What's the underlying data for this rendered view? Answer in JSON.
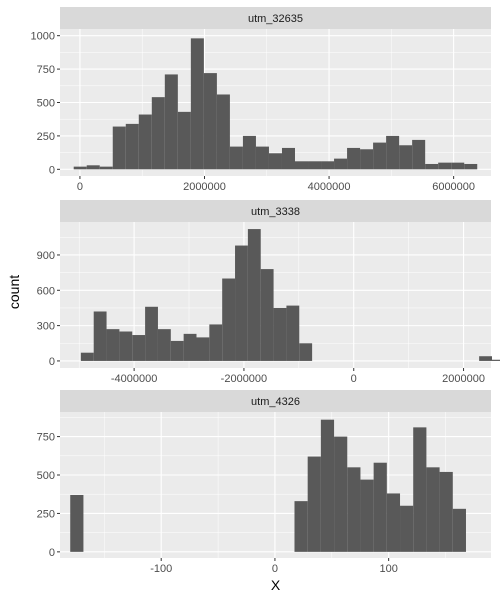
{
  "colors": {
    "panel_background": "#ebebeb",
    "strip_background": "#d9d9d9",
    "grid_major": "#ffffff",
    "bar_fill": "#595959",
    "tick_mark": "#333333",
    "tick_text": "#4d4d4d"
  },
  "chart_data": {
    "type": "bar",
    "subtype": "faceted-histogram",
    "xlabel": "X",
    "ylabel": "count",
    "grid": true,
    "facets": [
      {
        "strip": "utm_32635",
        "xlim": [
          -320000,
          6600000
        ],
        "ylim": [
          -50,
          1050
        ],
        "x_ticks": [
          0,
          2000000,
          4000000,
          6000000
        ],
        "x_tick_labels": [
          "0",
          "2000000",
          "4000000",
          "6000000"
        ],
        "y_ticks": [
          0,
          250,
          500,
          750,
          1000
        ],
        "y_tick_labels": [
          "0",
          "250",
          "500",
          "750",
          "1000"
        ],
        "bins": {
          "start": -100000,
          "width": 209000,
          "counts": [
            20,
            30,
            20,
            320,
            340,
            410,
            540,
            710,
            430,
            980,
            720,
            560,
            170,
            250,
            170,
            120,
            160,
            60,
            60,
            60,
            80,
            160,
            150,
            200,
            250,
            180,
            220,
            40,
            50,
            50,
            40
          ]
        }
      },
      {
        "strip": "utm_3338",
        "xlim": [
          -5350000,
          2500000
        ],
        "ylim": [
          -60,
          1180
        ],
        "x_ticks": [
          -4000000,
          -2000000,
          0,
          2000000
        ],
        "x_tick_labels": [
          "-4000000",
          "-2000000",
          "0",
          "2000000"
        ],
        "y_ticks": [
          0,
          300,
          600,
          900
        ],
        "y_tick_labels": [
          "0",
          "300",
          "600",
          "900"
        ],
        "bins": {
          "start": -4970000,
          "width": 234000,
          "counts": [
            70,
            420,
            270,
            250,
            220,
            460,
            270,
            170,
            230,
            200,
            310,
            700,
            980,
            1120,
            780,
            450,
            470,
            150,
            0,
            0,
            0,
            0,
            0,
            0,
            0,
            0,
            0,
            0,
            0,
            0,
            0,
            40,
            10
          ]
        }
      },
      {
        "strip": "utm_4326",
        "xlim": [
          -189,
          190
        ],
        "ylim": [
          -40,
          910
        ],
        "x_ticks": [
          -100,
          0,
          100
        ],
        "x_tick_labels": [
          "-100",
          "0",
          "100"
        ],
        "y_ticks": [
          0,
          250,
          500,
          750
        ],
        "y_tick_labels": [
          "0",
          "250",
          "500",
          "750"
        ],
        "bins": {
          "start": -180,
          "width": 11.6,
          "counts": [
            370,
            0,
            0,
            0,
            0,
            0,
            0,
            0,
            0,
            0,
            0,
            0,
            0,
            0,
            0,
            0,
            0,
            330,
            620,
            860,
            750,
            550,
            470,
            580,
            380,
            300,
            810,
            550,
            520,
            280
          ]
        }
      }
    ]
  }
}
